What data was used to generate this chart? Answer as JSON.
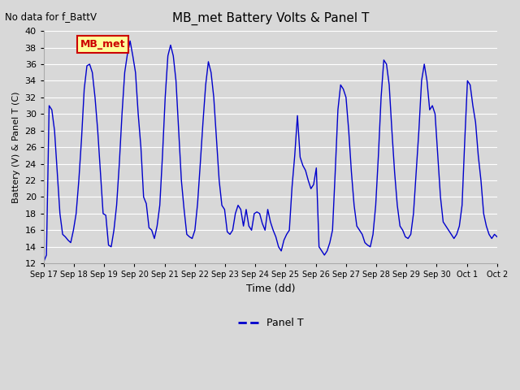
{
  "title": "MB_met Battery Volts & Panel T",
  "top_left_text": "No data for f_BattV",
  "ylabel": "Battery (V) & Panel T (C)",
  "xlabel": "Time (dd)",
  "legend_label": "Panel T",
  "legend_color": "#0000cc",
  "line_color": "#0000cc",
  "bg_color": "#d8d8d8",
  "ylim": [
    12,
    40
  ],
  "yticks": [
    12,
    14,
    16,
    18,
    20,
    22,
    24,
    26,
    28,
    30,
    32,
    34,
    36,
    38,
    40
  ],
  "xtick_labels": [
    "Sep 17",
    "Sep 18",
    "Sep 19",
    "Sep 20",
    "Sep 21",
    "Sep 22",
    "Sep 23",
    "Sep 24",
    "Sep 25",
    "Sep 26",
    "Sep 27",
    "Sep 28",
    "Sep 29",
    "Sep 30",
    "Oct 1",
    "Oct 2"
  ],
  "box_label": "MB_met",
  "box_facecolor": "#ffff99",
  "box_edgecolor": "#cc0000",
  "box_text_color": "#cc0000",
  "panel_t_data": [
    12.2,
    13.0,
    31.0,
    30.5,
    28.0,
    23.0,
    18.0,
    15.5,
    15.2,
    14.8,
    14.5,
    16.0,
    18.0,
    22.0,
    27.0,
    33.0,
    35.8,
    36.0,
    35.0,
    32.0,
    28.0,
    23.0,
    18.0,
    17.8,
    14.2,
    14.0,
    16.0,
    19.0,
    24.0,
    30.0,
    35.0,
    37.2,
    38.8,
    37.0,
    35.0,
    30.0,
    26.0,
    20.0,
    19.2,
    16.3,
    16.0,
    15.0,
    16.5,
    19.0,
    25.0,
    32.0,
    37.0,
    38.3,
    37.0,
    34.0,
    28.0,
    22.0,
    18.5,
    15.5,
    15.2,
    15.0,
    16.0,
    19.2,
    24.0,
    29.0,
    33.5,
    36.3,
    35.0,
    32.0,
    27.0,
    22.0,
    19.0,
    18.5,
    15.8,
    15.5,
    16.0,
    18.0,
    19.0,
    18.5,
    16.5,
    18.5,
    16.5,
    16.0,
    18.0,
    18.2,
    18.0,
    16.8,
    16.0,
    18.5,
    17.0,
    16.0,
    15.2,
    14.0,
    13.5,
    14.8,
    15.5,
    16.0,
    21.2,
    25.0,
    29.8,
    24.8,
    23.8,
    23.2,
    22.0,
    21.0,
    21.5,
    23.5,
    14.0,
    13.5,
    13.0,
    13.5,
    14.5,
    16.0,
    23.0,
    30.5,
    33.5,
    33.0,
    32.0,
    28.0,
    23.0,
    19.0,
    16.5,
    16.0,
    15.5,
    14.5,
    14.2,
    14.0,
    15.5,
    19.0,
    25.0,
    32.0,
    36.5,
    36.0,
    33.5,
    28.0,
    23.0,
    19.0,
    16.5,
    16.0,
    15.2,
    15.0,
    15.5,
    18.0,
    23.0,
    28.0,
    34.0,
    36.0,
    34.0,
    30.5,
    31.0,
    30.0,
    25.0,
    20.0,
    17.0,
    16.5,
    16.0,
    15.5,
    15.0,
    15.5,
    16.5,
    19.0,
    26.8,
    34.0,
    33.5,
    31.0,
    29.0,
    25.0,
    22.0,
    18.0,
    16.5,
    15.5,
    15.0,
    15.5,
    15.2
  ]
}
